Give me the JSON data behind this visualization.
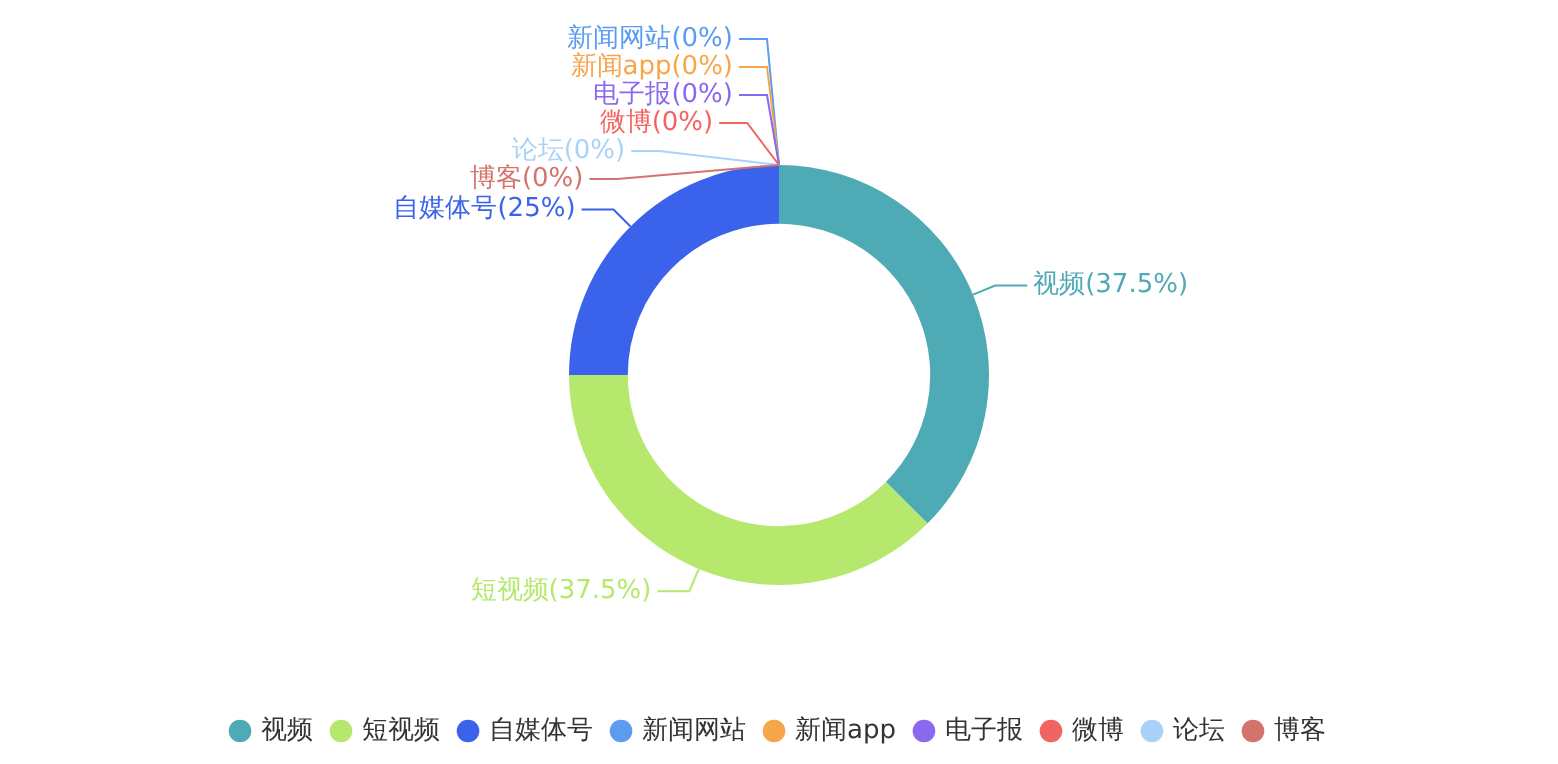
{
  "chart_data": {
    "type": "donut",
    "categories": [
      "视频",
      "短视频",
      "自媒体号",
      "新闻网站",
      "新闻app",
      "电子报",
      "微博",
      null,
      "论坛",
      "博客"
    ],
    "values": [
      37.5,
      37.5,
      25,
      0,
      0,
      0,
      0,
      0,
      0,
      0
    ],
    "colors": [
      "#4eaab5",
      "#b5e86c",
      "#3b62ea",
      "#5b9cf0",
      "#f7a54a",
      "#8a68f0",
      "#f26363",
      "#47c76a",
      "#a9d2f7",
      "#d4736e"
    ],
    "value_labels": [
      "(37.5%)",
      "(37.5%)",
      "(25%)",
      "(0%)",
      "(0%)",
      "(0%)",
      "(0%)",
      null,
      "(0%)",
      "(0%)"
    ],
    "legend": "bottom"
  }
}
